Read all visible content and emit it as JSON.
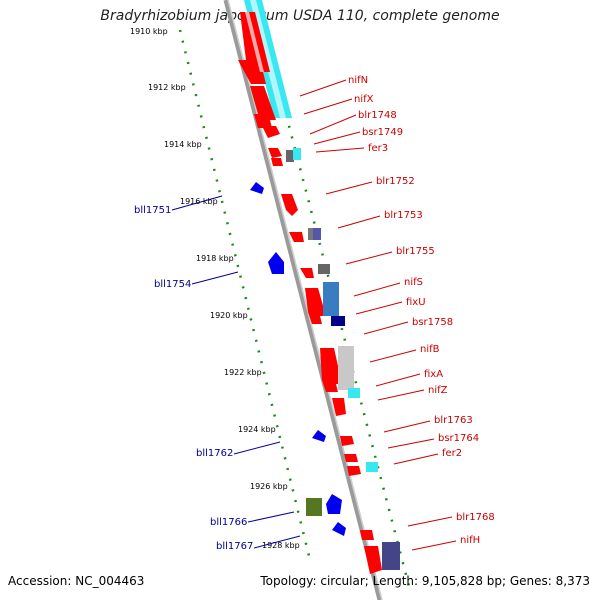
{
  "title": "Bradyrhizobium japonicum USDA 110, complete genome",
  "footer": {
    "accession": "Accession: NC_004463",
    "summary": "Topology: circular; Length: 9,105,828 bp; Genes: 8,373"
  },
  "colors": {
    "forward_label": "#cc0000",
    "reverse_label": "#000099",
    "tick_line": "#007700",
    "backbone": "#888888"
  },
  "ticks": [
    "1910 kbp",
    "1912 kbp",
    "1914 kbp",
    "1916 kbp",
    "1918 kbp",
    "1920 kbp",
    "1922 kbp",
    "1924 kbp",
    "1926 kbp",
    "1928 kbp"
  ],
  "forward_genes": [
    "nifN",
    "nifX",
    "blr1748",
    "bsr1749",
    "fer3",
    "blr1752",
    "blr1753",
    "blr1755",
    "nifS",
    "fixU",
    "bsr1758",
    "nifB",
    "fixA",
    "nifZ",
    "blr1763",
    "bsr1764",
    "fer2",
    "blr1768",
    "nifH"
  ],
  "reverse_genes": [
    "bll1751",
    "bll1754",
    "bll1762",
    "bll1766",
    "bll1767"
  ]
}
